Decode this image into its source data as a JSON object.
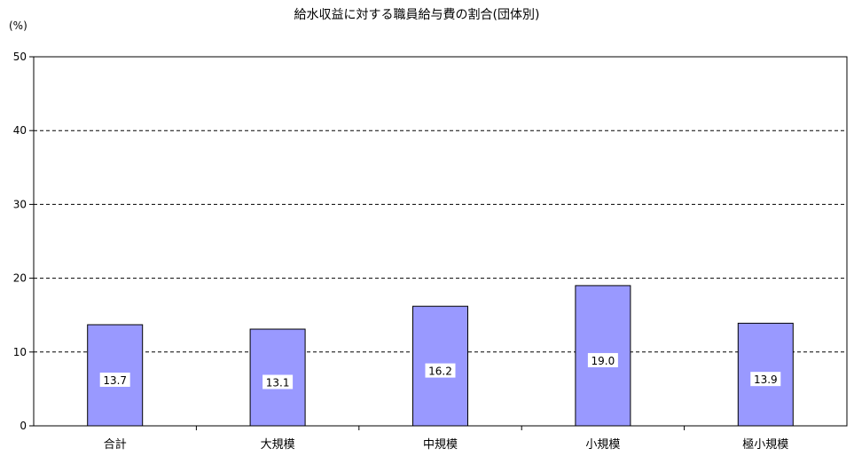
{
  "chart_data": {
    "type": "bar",
    "title": "給水収益に対する職員給与費の割合(団体別)",
    "ylabel": "(%)",
    "xlabel": "",
    "categories": [
      "合計",
      "大規模",
      "中規模",
      "小規模",
      "極小規模"
    ],
    "values": [
      13.7,
      13.1,
      16.2,
      19.0,
      13.9
    ],
    "value_labels": [
      "13.7",
      "13.1",
      "16.2",
      "19.0",
      "13.9"
    ],
    "ylim": [
      0,
      50
    ],
    "yticks": [
      0,
      10,
      20,
      30,
      40,
      50
    ],
    "ytick_labels": [
      "0",
      "10",
      "20",
      "30",
      "40",
      "50"
    ],
    "grid": "horizontal-dashed",
    "legend": "none",
    "bar_color": "#9999ff",
    "bar_edge_color": "#000000",
    "label_box_color": "#ffffff"
  }
}
